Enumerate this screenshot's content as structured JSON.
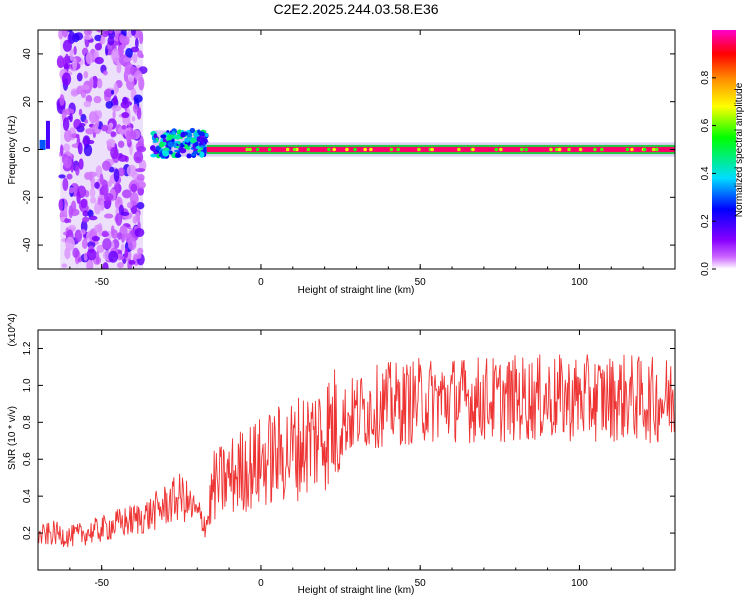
{
  "title": "C2E2.2025.244.03.58.E36",
  "colorbar": {
    "label": "Normalized spectral amplitude",
    "ticks": [
      "0.0",
      "0.2",
      "0.4",
      "0.6",
      "0.8"
    ],
    "tick_values": [
      0.0,
      0.2,
      0.4,
      0.6,
      0.8
    ],
    "range": [
      0,
      1
    ]
  },
  "chart_data": [
    {
      "type": "heatmap",
      "name": "spectrogram",
      "title": "",
      "xlabel": "Height of straight line (km)",
      "ylabel": "Frequency (Hz)",
      "xlim": [
        -70,
        130
      ],
      "ylim": [
        -50,
        50
      ],
      "x_ticks": [
        "-50",
        "0",
        "50",
        "100"
      ],
      "x_tick_values": [
        -50,
        0,
        50,
        100
      ],
      "y_ticks": [
        "-40",
        "-20",
        "0",
        "20",
        "40"
      ],
      "y_tick_values": [
        -40,
        -20,
        0,
        20,
        40
      ],
      "colormap": "rainbow (white-violet-blue-cyan-green-yellow-red-magenta)",
      "regions": [
        {
          "x_range": [
            -63,
            -37
          ],
          "freq_range": [
            -50,
            50
          ],
          "amplitude": 0.15,
          "description": "broadband noise"
        },
        {
          "x_range": [
            -34,
            -17
          ],
          "freq_range": [
            -3,
            8
          ],
          "amplitude": 0.45
        },
        {
          "x_range": [
            -17,
            130
          ],
          "freq_range": [
            -1.5,
            1.5
          ],
          "amplitude": 0.95,
          "description": "narrow line near 0 Hz"
        }
      ]
    },
    {
      "type": "line",
      "name": "snr",
      "title": "",
      "xlabel": "Height of straight line (km)",
      "ylabel": "SNR (10 * v/v)",
      "y_multiplier": "(x10^4)",
      "xlim": [
        -70,
        130
      ],
      "ylim": [
        0,
        1.3
      ],
      "x_ticks": [
        "-50",
        "0",
        "50",
        "100"
      ],
      "x_tick_values": [
        -50,
        0,
        50,
        100
      ],
      "y_ticks": [
        "0.2",
        "0.4",
        "0.6",
        "0.8",
        "1.0",
        "1.2"
      ],
      "y_tick_values": [
        0.2,
        0.4,
        0.6,
        0.8,
        1.0,
        1.2
      ],
      "color": "#ee3333",
      "series": [
        {
          "x": [
            -70,
            -65,
            -60,
            -55,
            -50,
            -45,
            -40,
            -35,
            -30,
            -25,
            -20,
            -17,
            -15,
            -10,
            -5,
            0,
            5,
            10,
            15,
            20,
            25,
            30,
            35,
            40,
            45,
            50,
            55,
            60,
            65,
            70,
            75,
            80,
            85,
            90,
            95,
            100,
            105,
            110,
            115,
            120,
            125,
            130
          ],
          "values": [
            0.18,
            0.2,
            0.18,
            0.2,
            0.22,
            0.25,
            0.27,
            0.3,
            0.35,
            0.4,
            0.3,
            0.25,
            0.45,
            0.5,
            0.55,
            0.58,
            0.62,
            0.65,
            0.7,
            0.75,
            0.8,
            0.85,
            0.88,
            0.9,
            0.9,
            0.92,
            0.92,
            0.93,
            0.92,
            0.93,
            0.92,
            0.93,
            0.93,
            0.93,
            0.93,
            0.93,
            0.93,
            0.93,
            0.94,
            0.92,
            0.92,
            0.93
          ]
        }
      ]
    }
  ]
}
